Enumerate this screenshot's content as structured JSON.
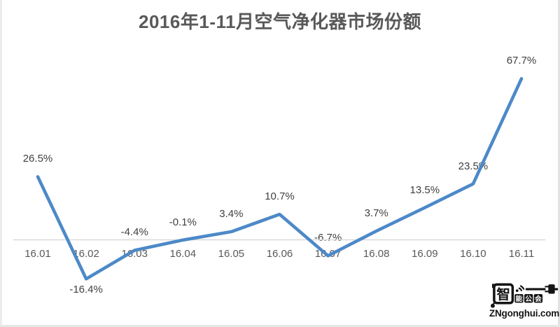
{
  "chart_data": {
    "type": "line",
    "title": "2016年1-11月空气净化器市场份额",
    "categories": [
      "16.01",
      "16.02",
      "16.03",
      "16.04",
      "16.05",
      "16.06",
      "16.07",
      "16.08",
      "16.09",
      "16.10",
      "16.11"
    ],
    "values": [
      26.5,
      -16.4,
      -4.4,
      -0.1,
      3.4,
      10.7,
      -6.7,
      3.7,
      13.5,
      23.5,
      67.7
    ],
    "labels": [
      "26.5%",
      "-16.4%",
      "-4.4%",
      "-0.1%",
      "3.4%",
      "10.7%",
      "-6.7%",
      "3.7%",
      "13.5%",
      "23.5%",
      "67.7%"
    ],
    "label_side": [
      "above",
      "below",
      "above",
      "above",
      "above",
      "above",
      "above",
      "above",
      "above",
      "above",
      "above"
    ],
    "xlabel": "",
    "ylabel": "",
    "ylim": [
      -25,
      75
    ],
    "grid": false,
    "legend": "none",
    "baseline_value": 0,
    "line_color": "#4d89c8",
    "axis_line_color": "#d9d9d9",
    "data_label_color": "#3f3f3f",
    "tick_label_color": "#595959",
    "title_color": "#595959"
  },
  "watermark": {
    "logo_main_char": "智",
    "logo_chars": [
      "能",
      "公",
      "会"
    ],
    "logo_text": "智能公会",
    "url": "ZNgonghui.com",
    "color": "#151515"
  }
}
